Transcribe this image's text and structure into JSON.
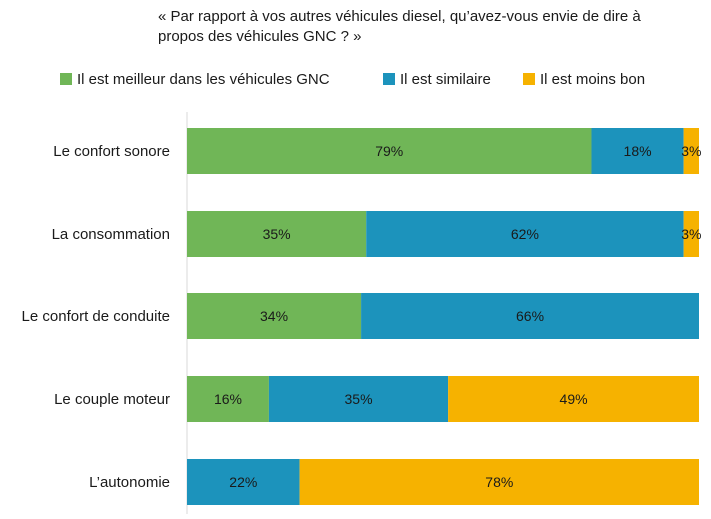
{
  "chart_data": {
    "type": "bar",
    "orientation": "horizontal",
    "stacked": true,
    "title": "« Par rapport à vos autres véhicules diesel, qu’avez-vous envie de dire à propos des véhicules GNC  ? »",
    "title_lines": [
      "« Par rapport à vos autres véhicules diesel, qu’avez-vous envie de dire à",
      "propos des véhicules GNC  ? »"
    ],
    "xlabel": "",
    "ylabel": "",
    "xlim": [
      0,
      100
    ],
    "grid": false,
    "legend_position": "top",
    "categories": [
      "Le confort sonore",
      "La consommation",
      "Le confort de conduite",
      "Le couple moteur",
      "L’autonomie"
    ],
    "series": [
      {
        "name": "Il est meilleur dans les véhicules GNC",
        "color": "#70b657",
        "values": [
          79,
          35,
          34,
          16,
          0
        ],
        "labels": [
          "79%",
          "35%",
          "34%",
          "16%",
          ""
        ]
      },
      {
        "name": "Il est similaire",
        "color": "#1c93bc",
        "values": [
          18,
          62,
          66,
          35,
          22
        ],
        "labels": [
          "18%",
          "62%",
          "66%",
          "35%",
          "22%"
        ]
      },
      {
        "name": "Il est moins bon",
        "color": "#f6b200",
        "values": [
          3,
          3,
          0,
          49,
          78
        ],
        "labels": [
          "3%",
          "3%",
          "",
          "49%",
          "78%"
        ]
      }
    ]
  }
}
